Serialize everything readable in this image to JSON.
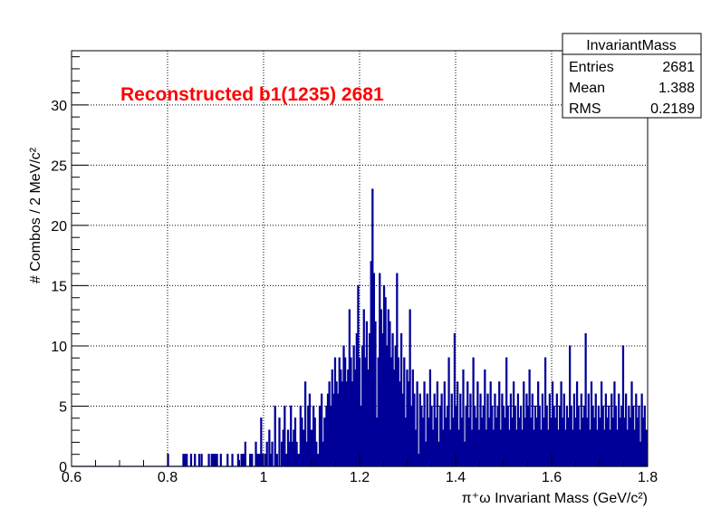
{
  "chart_data": {
    "type": "bar",
    "title": "Reconstructed b1(1235) 2681",
    "xlabel": "π⁺ω Invariant Mass (GeV/c²)",
    "ylabel": "# Combos / 2 MeV/c²",
    "xlim": [
      0.6,
      1.8
    ],
    "ylim": [
      0,
      34.5
    ],
    "grid": true,
    "bin_width": 0.002,
    "x_ticks": [
      {
        "value": 0.6,
        "label": "0.6"
      },
      {
        "value": 0.8,
        "label": "0.8"
      },
      {
        "value": 1.0,
        "label": "1"
      },
      {
        "value": 1.2,
        "label": "1.2"
      },
      {
        "value": 1.4,
        "label": "1.4"
      },
      {
        "value": 1.6,
        "label": "1.6"
      },
      {
        "value": 1.8,
        "label": "1.8"
      }
    ],
    "y_ticks": [
      {
        "value": 0,
        "label": "0"
      },
      {
        "value": 5,
        "label": "5"
      },
      {
        "value": 10,
        "label": "10"
      },
      {
        "value": 15,
        "label": "15"
      },
      {
        "value": 20,
        "label": "20"
      },
      {
        "value": 25,
        "label": "25"
      },
      {
        "value": 30,
        "label": "30"
      }
    ],
    "histogram_color": "#000099",
    "title_color": "#ff0000",
    "bins": [
      [
        0.801,
        1
      ],
      [
        0.833,
        1
      ],
      [
        0.837,
        1
      ],
      [
        0.84,
        1
      ],
      [
        0.849,
        1
      ],
      [
        0.857,
        1
      ],
      [
        0.866,
        1
      ],
      [
        0.871,
        1
      ],
      [
        0.886,
        1
      ],
      [
        0.892,
        1
      ],
      [
        0.895,
        1
      ],
      [
        0.899,
        1
      ],
      [
        0.903,
        1
      ],
      [
        0.911,
        1
      ],
      [
        0.925,
        1
      ],
      [
        0.935,
        1
      ],
      [
        0.947,
        1
      ],
      [
        0.954,
        1
      ],
      [
        0.958,
        1
      ],
      [
        0.962,
        2
      ],
      [
        0.972,
        1
      ],
      [
        0.976,
        1
      ],
      [
        0.984,
        2
      ],
      [
        0.988,
        1
      ],
      [
        0.992,
        1
      ],
      [
        0.995,
        4
      ],
      [
        0.999,
        1
      ],
      [
        1.004,
        1
      ],
      [
        1.007,
        2
      ],
      [
        1.012,
        3
      ],
      [
        1.015,
        1
      ],
      [
        1.018,
        2
      ],
      [
        1.024,
        5
      ],
      [
        1.028,
        1
      ],
      [
        1.033,
        4
      ],
      [
        1.038,
        2
      ],
      [
        1.041,
        3
      ],
      [
        1.044,
        5
      ],
      [
        1.047,
        1
      ],
      [
        1.051,
        3
      ],
      [
        1.054,
        2
      ],
      [
        1.057,
        5
      ],
      [
        1.06,
        2
      ],
      [
        1.063,
        3
      ],
      [
        1.066,
        4
      ],
      [
        1.069,
        2
      ],
      [
        1.073,
        1
      ],
      [
        1.077,
        5
      ],
      [
        1.08,
        4
      ],
      [
        1.083,
        3
      ],
      [
        1.087,
        7
      ],
      [
        1.09,
        2
      ],
      [
        1.093,
        5
      ],
      [
        1.096,
        6
      ],
      [
        1.1,
        3
      ],
      [
        1.104,
        5
      ],
      [
        1.107,
        4
      ],
      [
        1.11,
        2
      ],
      [
        1.113,
        1
      ],
      [
        1.117,
        5
      ],
      [
        1.121,
        6
      ],
      [
        1.124,
        2
      ],
      [
        1.127,
        4
      ],
      [
        1.131,
        5
      ],
      [
        1.134,
        6
      ],
      [
        1.137,
        7
      ],
      [
        1.14,
        5
      ],
      [
        1.143,
        8
      ],
      [
        1.146,
        6
      ],
      [
        1.149,
        9
      ],
      [
        1.152,
        7
      ],
      [
        1.155,
        6
      ],
      [
        1.158,
        9
      ],
      [
        1.161,
        8
      ],
      [
        1.164,
        7
      ],
      [
        1.167,
        10
      ],
      [
        1.17,
        9
      ],
      [
        1.173,
        7
      ],
      [
        1.176,
        8
      ],
      [
        1.179,
        13
      ],
      [
        1.182,
        9
      ],
      [
        1.185,
        7
      ],
      [
        1.188,
        10
      ],
      [
        1.191,
        8
      ],
      [
        1.194,
        11
      ],
      [
        1.197,
        15
      ],
      [
        1.2,
        9
      ],
      [
        1.203,
        5
      ],
      [
        1.206,
        10
      ],
      [
        1.209,
        13
      ],
      [
        1.212,
        9
      ],
      [
        1.215,
        12
      ],
      [
        1.218,
        8
      ],
      [
        1.221,
        11
      ],
      [
        1.224,
        17
      ],
      [
        1.227,
        23
      ],
      [
        1.23,
        16
      ],
      [
        1.233,
        12
      ],
      [
        1.236,
        4
      ],
      [
        1.239,
        9
      ],
      [
        1.242,
        16
      ],
      [
        1.245,
        13
      ],
      [
        1.248,
        11
      ],
      [
        1.251,
        15
      ],
      [
        1.254,
        14
      ],
      [
        1.257,
        10
      ],
      [
        1.26,
        13
      ],
      [
        1.263,
        12
      ],
      [
        1.266,
        9
      ],
      [
        1.269,
        11
      ],
      [
        1.272,
        8
      ],
      [
        1.275,
        10
      ],
      [
        1.278,
        16
      ],
      [
        1.281,
        9
      ],
      [
        1.284,
        7
      ],
      [
        1.287,
        11
      ],
      [
        1.29,
        6
      ],
      [
        1.293,
        9
      ],
      [
        1.296,
        4
      ],
      [
        1.299,
        8
      ],
      [
        1.302,
        7
      ],
      [
        1.305,
        13
      ],
      [
        1.308,
        5
      ],
      [
        1.311,
        8
      ],
      [
        1.314,
        6
      ],
      [
        1.317,
        3
      ],
      [
        1.32,
        7
      ],
      [
        1.323,
        1
      ],
      [
        1.326,
        6
      ],
      [
        1.329,
        5
      ],
      [
        1.332,
        4
      ],
      [
        1.335,
        7
      ],
      [
        1.338,
        2
      ],
      [
        1.341,
        6
      ],
      [
        1.344,
        4
      ],
      [
        1.347,
        8
      ],
      [
        1.35,
        5
      ],
      [
        1.353,
        3
      ],
      [
        1.356,
        6
      ],
      [
        1.359,
        4
      ],
      [
        1.362,
        7
      ],
      [
        1.365,
        2
      ],
      [
        1.368,
        5
      ],
      [
        1.371,
        6
      ],
      [
        1.374,
        3
      ],
      [
        1.377,
        7
      ],
      [
        1.38,
        4
      ],
      [
        1.383,
        5
      ],
      [
        1.386,
        9
      ],
      [
        1.389,
        3
      ],
      [
        1.392,
        6
      ],
      [
        1.395,
        4
      ],
      [
        1.398,
        11
      ],
      [
        1.401,
        5
      ],
      [
        1.404,
        7
      ],
      [
        1.407,
        3
      ],
      [
        1.41,
        6
      ],
      [
        1.413,
        4
      ],
      [
        1.416,
        8
      ],
      [
        1.419,
        2
      ],
      [
        1.422,
        5
      ],
      [
        1.425,
        7
      ],
      [
        1.428,
        4
      ],
      [
        1.431,
        6
      ],
      [
        1.434,
        3
      ],
      [
        1.437,
        9
      ],
      [
        1.44,
        5
      ],
      [
        1.443,
        4
      ],
      [
        1.446,
        7
      ],
      [
        1.449,
        3
      ],
      [
        1.452,
        6
      ],
      [
        1.455,
        4
      ],
      [
        1.458,
        5
      ],
      [
        1.461,
        8
      ],
      [
        1.464,
        3
      ],
      [
        1.467,
        6
      ],
      [
        1.47,
        4
      ],
      [
        1.473,
        7
      ],
      [
        1.476,
        5
      ],
      [
        1.479,
        3
      ],
      [
        1.482,
        6
      ],
      [
        1.485,
        4
      ],
      [
        1.488,
        5
      ],
      [
        1.491,
        7
      ],
      [
        1.494,
        3
      ],
      [
        1.497,
        6
      ],
      [
        1.5,
        5
      ],
      [
        1.503,
        4
      ],
      [
        1.506,
        9
      ],
      [
        1.509,
        5
      ],
      [
        1.512,
        3
      ],
      [
        1.515,
        6
      ],
      [
        1.518,
        4
      ],
      [
        1.521,
        7
      ],
      [
        1.524,
        5
      ],
      [
        1.527,
        3
      ],
      [
        1.53,
        6
      ],
      [
        1.533,
        4
      ],
      [
        1.536,
        5
      ],
      [
        1.539,
        3
      ],
      [
        1.542,
        7
      ],
      [
        1.545,
        4
      ],
      [
        1.548,
        6
      ],
      [
        1.551,
        5
      ],
      [
        1.554,
        8
      ],
      [
        1.557,
        4
      ],
      [
        1.56,
        6
      ],
      [
        1.563,
        3
      ],
      [
        1.566,
        5
      ],
      [
        1.569,
        4
      ],
      [
        1.572,
        7
      ],
      [
        1.575,
        5
      ],
      [
        1.578,
        3
      ],
      [
        1.581,
        6
      ],
      [
        1.584,
        4
      ],
      [
        1.587,
        9
      ],
      [
        1.59,
        5
      ],
      [
        1.593,
        3
      ],
      [
        1.596,
        6
      ],
      [
        1.599,
        4
      ],
      [
        1.602,
        7
      ],
      [
        1.605,
        5
      ],
      [
        1.608,
        4
      ],
      [
        1.611,
        6
      ],
      [
        1.614,
        3
      ],
      [
        1.617,
        5
      ],
      [
        1.62,
        7
      ],
      [
        1.623,
        4
      ],
      [
        1.626,
        6
      ],
      [
        1.629,
        3
      ],
      [
        1.632,
        5
      ],
      [
        1.635,
        4
      ],
      [
        1.638,
        10
      ],
      [
        1.641,
        5
      ],
      [
        1.644,
        3
      ],
      [
        1.647,
        6
      ],
      [
        1.65,
        4
      ],
      [
        1.653,
        7
      ],
      [
        1.656,
        5
      ],
      [
        1.659,
        3
      ],
      [
        1.662,
        6
      ],
      [
        1.665,
        4
      ],
      [
        1.668,
        5
      ],
      [
        1.671,
        11
      ],
      [
        1.674,
        4
      ],
      [
        1.677,
        6
      ],
      [
        1.68,
        3
      ],
      [
        1.683,
        7
      ],
      [
        1.686,
        5
      ],
      [
        1.689,
        4
      ],
      [
        1.692,
        6
      ],
      [
        1.695,
        3
      ],
      [
        1.698,
        5
      ],
      [
        1.701,
        4
      ],
      [
        1.704,
        7
      ],
      [
        1.707,
        5
      ],
      [
        1.71,
        3
      ],
      [
        1.713,
        6
      ],
      [
        1.716,
        4
      ],
      [
        1.719,
        5
      ],
      [
        1.722,
        3
      ],
      [
        1.725,
        6
      ],
      [
        1.728,
        4
      ],
      [
        1.731,
        7
      ],
      [
        1.734,
        5
      ],
      [
        1.737,
        3
      ],
      [
        1.74,
        6
      ],
      [
        1.743,
        4
      ],
      [
        1.746,
        5
      ],
      [
        1.749,
        10
      ],
      [
        1.752,
        4
      ],
      [
        1.755,
        6
      ],
      [
        1.758,
        3
      ],
      [
        1.761,
        5
      ],
      [
        1.764,
        4
      ],
      [
        1.767,
        7
      ],
      [
        1.77,
        5
      ],
      [
        1.773,
        3
      ],
      [
        1.776,
        6
      ],
      [
        1.779,
        4
      ],
      [
        1.782,
        5
      ],
      [
        1.785,
        2
      ],
      [
        1.788,
        6
      ],
      [
        1.791,
        4
      ],
      [
        1.794,
        5
      ],
      [
        1.797,
        3
      ]
    ]
  },
  "stats_box": {
    "name": "InvariantMass",
    "rows": [
      {
        "label": "Entries",
        "value": "2681"
      },
      {
        "label": "Mean",
        "value": "1.388"
      },
      {
        "label": "RMS",
        "value": "0.2189"
      }
    ]
  }
}
